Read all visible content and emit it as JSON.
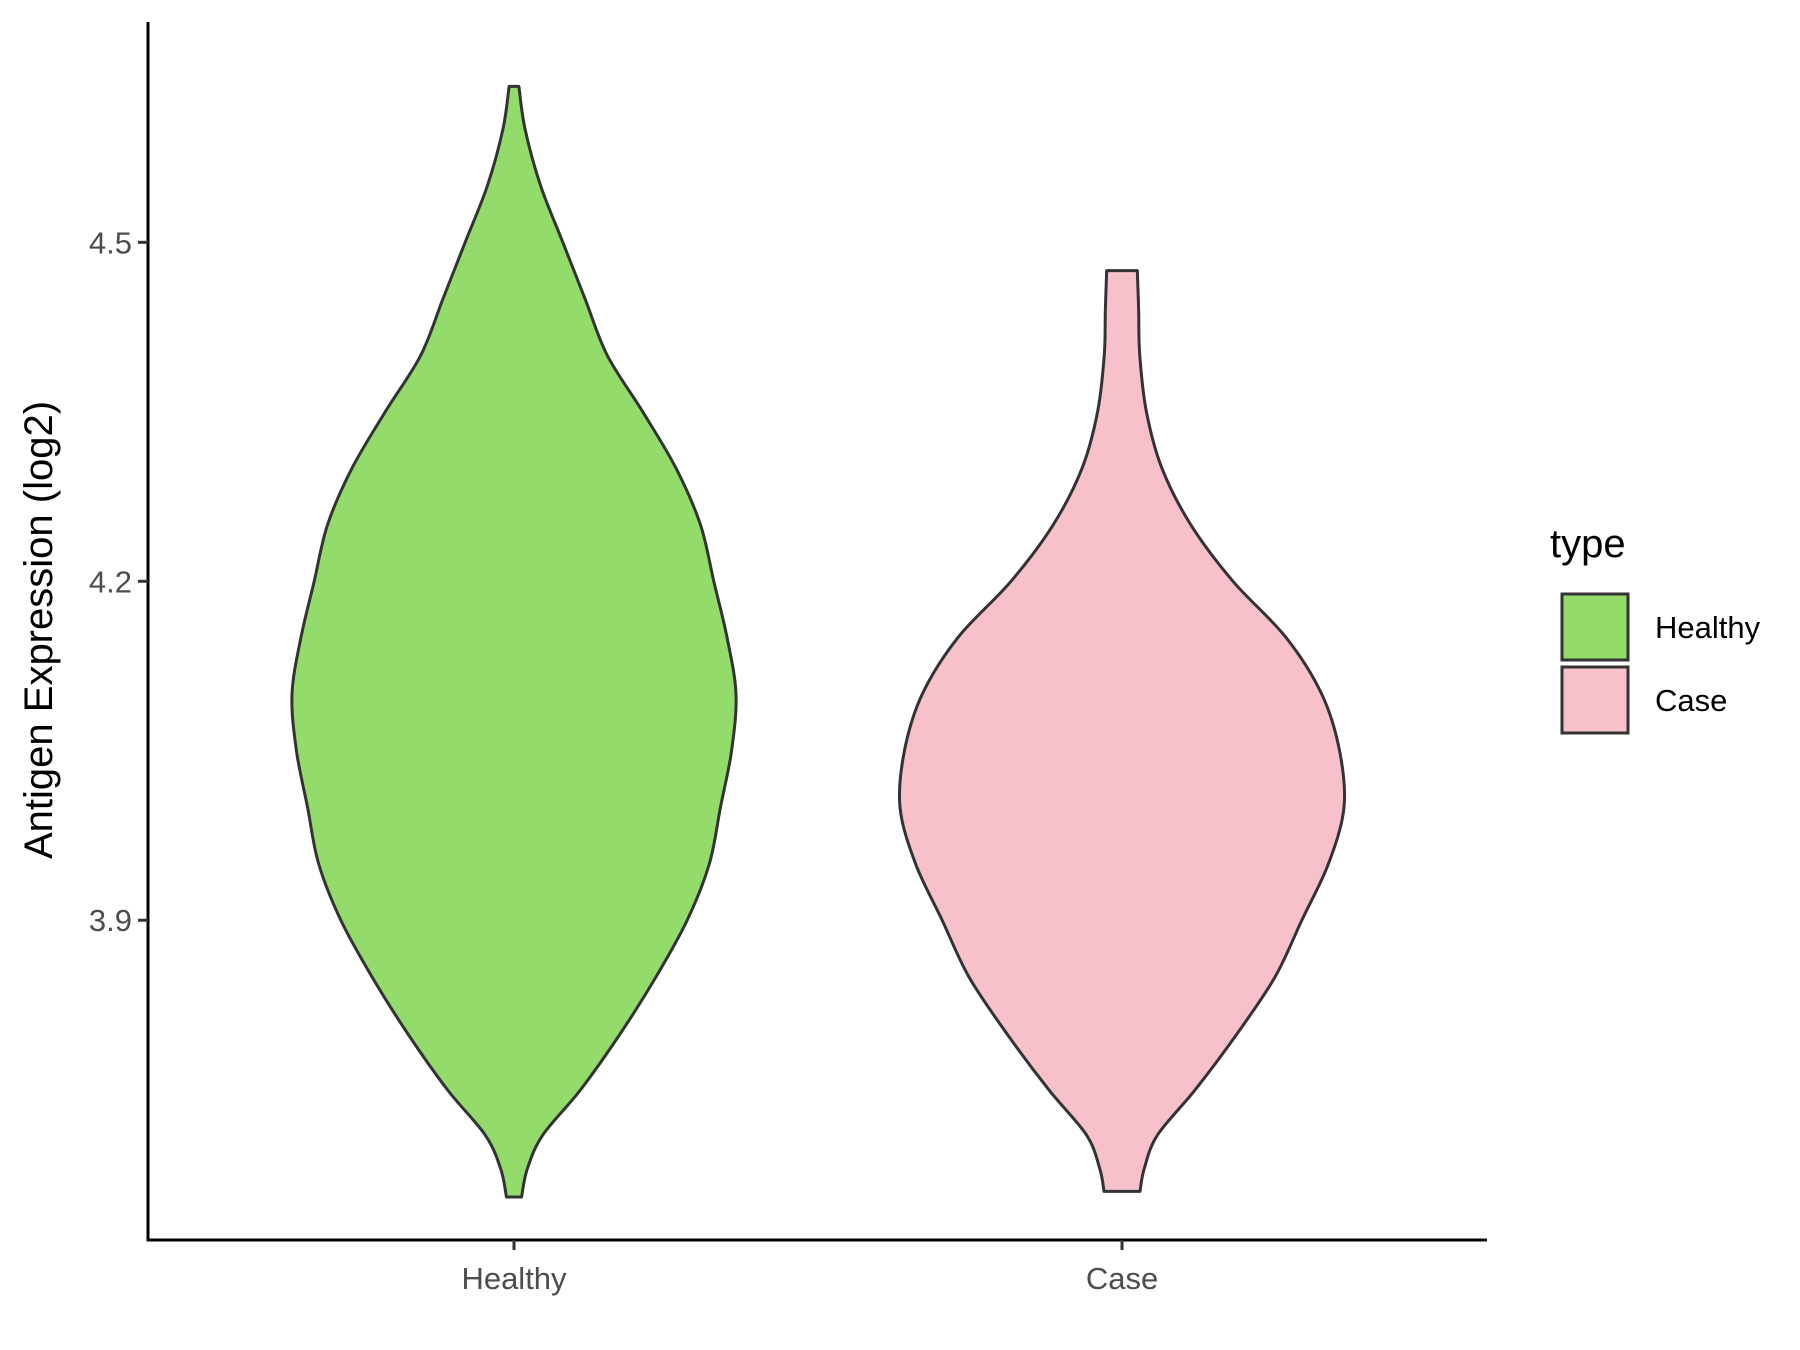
{
  "chart_data": {
    "type": "violin",
    "title": "",
    "xlabel": "",
    "ylabel": "Antigen Expression (log2)",
    "categories": [
      "Healthy",
      "Case"
    ],
    "yticks": [
      3.9,
      4.2,
      4.5
    ],
    "ylim": [
      3.617,
      4.695
    ],
    "grid": false,
    "legend": {
      "title": "type",
      "position": "right",
      "entries": [
        "Healthy",
        "Case"
      ]
    },
    "series": [
      {
        "name": "Healthy",
        "color": "#93dc6b",
        "min": 3.655,
        "max": 4.638,
        "profile": [
          [
            3.655,
            0.034
          ],
          [
            3.68,
            0.06
          ],
          [
            3.71,
            0.13
          ],
          [
            3.75,
            0.3
          ],
          [
            3.8,
            0.48
          ],
          [
            3.85,
            0.64
          ],
          [
            3.9,
            0.78
          ],
          [
            3.95,
            0.88
          ],
          [
            4.0,
            0.93
          ],
          [
            4.05,
            0.98
          ],
          [
            4.1,
            1.0
          ],
          [
            4.15,
            0.96
          ],
          [
            4.2,
            0.9
          ],
          [
            4.25,
            0.84
          ],
          [
            4.3,
            0.73
          ],
          [
            4.35,
            0.58
          ],
          [
            4.4,
            0.42
          ],
          [
            4.45,
            0.32
          ],
          [
            4.5,
            0.22
          ],
          [
            4.55,
            0.12
          ],
          [
            4.6,
            0.05
          ],
          [
            4.638,
            0.022
          ]
        ]
      },
      {
        "name": "Case",
        "color": "#f7c0cb",
        "min": 3.66,
        "max": 4.475,
        "profile": [
          [
            3.66,
            0.081
          ],
          [
            3.68,
            0.1
          ],
          [
            3.71,
            0.16
          ],
          [
            3.75,
            0.33
          ],
          [
            3.8,
            0.52
          ],
          [
            3.85,
            0.69
          ],
          [
            3.9,
            0.81
          ],
          [
            3.95,
            0.93
          ],
          [
            4.0,
            1.0
          ],
          [
            4.05,
            0.98
          ],
          [
            4.1,
            0.9
          ],
          [
            4.15,
            0.74
          ],
          [
            4.2,
            0.5
          ],
          [
            4.25,
            0.31
          ],
          [
            4.3,
            0.18
          ],
          [
            4.35,
            0.11
          ],
          [
            4.4,
            0.08
          ],
          [
            4.44,
            0.075
          ],
          [
            4.475,
            0.069
          ]
        ]
      }
    ]
  }
}
